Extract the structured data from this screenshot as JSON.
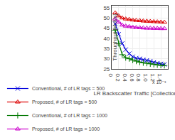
{
  "chart_data": {
    "type": "line",
    "xlabel": "LR Backscatter Traffic [Collections/s]",
    "ylabel": "Throughput [kbit/s]",
    "annotation": "x 10⁻³",
    "x": [
      0.1,
      0.2,
      0.3,
      0.4,
      0.5,
      0.6,
      0.7,
      0.8,
      0.9,
      1.0,
      1.1,
      1.2,
      1.3,
      1.4,
      1.5
    ],
    "xlim": [
      0,
      1.6
    ],
    "xticks": [
      0,
      0.2,
      0.4,
      0.6,
      0.8,
      {
        "value": 1.0,
        "label": "1.0"
      },
      1.2,
      1.4
    ],
    "ylim": [
      25,
      56
    ],
    "yticks": [
      25,
      30,
      35,
      40,
      45,
      50,
      55
    ],
    "grid": true,
    "legend": "bottom",
    "series": [
      {
        "name": "Conventional, # of LR tags = 500",
        "color": "#0000dd",
        "marker": "x",
        "values": [
          47.2,
          42.0,
          37.5,
          34.5,
          32.5,
          31.0,
          30.3,
          30.0,
          29.5,
          29.2,
          28.8,
          28.2,
          27.8,
          27.5,
          27.2
        ]
      },
      {
        "name": "Proposed, # of LR tags = 500",
        "color": "#dd0000",
        "marker": "triangle-open",
        "values": [
          52.5,
          51.0,
          50.0,
          49.5,
          49.3,
          49.0,
          48.8,
          48.7,
          48.5,
          48.4,
          48.3,
          48.2,
          48.1,
          48.0,
          47.9
        ]
      },
      {
        "name": "Conventional, # of LR tags = 1000",
        "color": "#007700",
        "marker": "plus",
        "values": [
          44.0,
          37.5,
          32.0,
          30.5,
          30.0,
          29.3,
          28.8,
          28.3,
          28.0,
          27.8,
          27.5,
          27.2,
          27.0,
          26.8,
          26.7
        ]
      },
      {
        "name": "Proposed, # of LR tags = 1000",
        "color": "#cc00cc",
        "marker": "triangle-open",
        "values": [
          49.5,
          48.0,
          46.5,
          46.0,
          45.8,
          45.5,
          45.3,
          45.2,
          45.1,
          45.0,
          45.0,
          44.9,
          44.9,
          44.8,
          44.8
        ]
      }
    ]
  }
}
